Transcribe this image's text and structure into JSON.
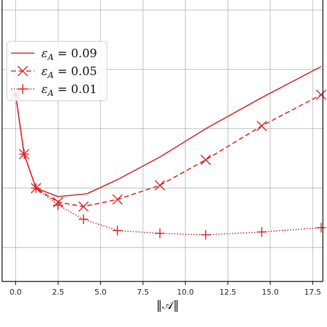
{
  "chart_data": {
    "type": "line",
    "xlabel": "‖𝒜‖",
    "ylabel": "",
    "xlim": [
      -0.8,
      18.1
    ],
    "ylim": [
      0,
      1
    ],
    "x_ticks": [
      0.0,
      2.5,
      5.0,
      7.5,
      10.0,
      12.5,
      15.0,
      17.5
    ],
    "x_tick_labels": [
      "0.0",
      "2.5",
      "5.0",
      "7.5",
      "10.0",
      "12.5",
      "15.0",
      "17.5"
    ],
    "y_gridlines": [
      0.12,
      0.33,
      0.54,
      0.75,
      0.96
    ],
    "grid": true,
    "legend_position": "upper-left",
    "color": "#d62728",
    "series": [
      {
        "name": "ε_A = 0.09",
        "label_parts": {
          "sym": "ε",
          "sub": "A",
          "rest": " = 0.09"
        },
        "linestyle": "solid",
        "marker": "none",
        "x": [
          0.0,
          0.5,
          1.2,
          2.5,
          4.2,
          6.0,
          8.5,
          11.2,
          14.5,
          18.0
        ],
        "y": [
          0.66,
          0.45,
          0.33,
          0.3,
          0.31,
          0.36,
          0.44,
          0.54,
          0.65,
          0.76
        ]
      },
      {
        "name": "ε_A = 0.05",
        "label_parts": {
          "sym": "ε",
          "sub": "A",
          "rest": " = 0.05"
        },
        "linestyle": "dashed",
        "marker": "x",
        "x": [
          0.0,
          0.5,
          1.2,
          2.5,
          4.0,
          6.0,
          8.5,
          11.2,
          14.5,
          18.0
        ],
        "y": [
          0.66,
          0.45,
          0.33,
          0.28,
          0.265,
          0.29,
          0.34,
          0.43,
          0.55,
          0.66
        ]
      },
      {
        "name": "ε_A = 0.01",
        "label_parts": {
          "sym": "ε",
          "sub": "A",
          "rest": " = 0.01"
        },
        "linestyle": "dotted",
        "marker": "+",
        "x": [
          0.0,
          0.5,
          1.2,
          2.5,
          4.0,
          6.0,
          8.5,
          11.2,
          14.5,
          18.0
        ],
        "y": [
          0.66,
          0.45,
          0.33,
          0.27,
          0.22,
          0.18,
          0.17,
          0.165,
          0.175,
          0.19
        ]
      }
    ]
  }
}
